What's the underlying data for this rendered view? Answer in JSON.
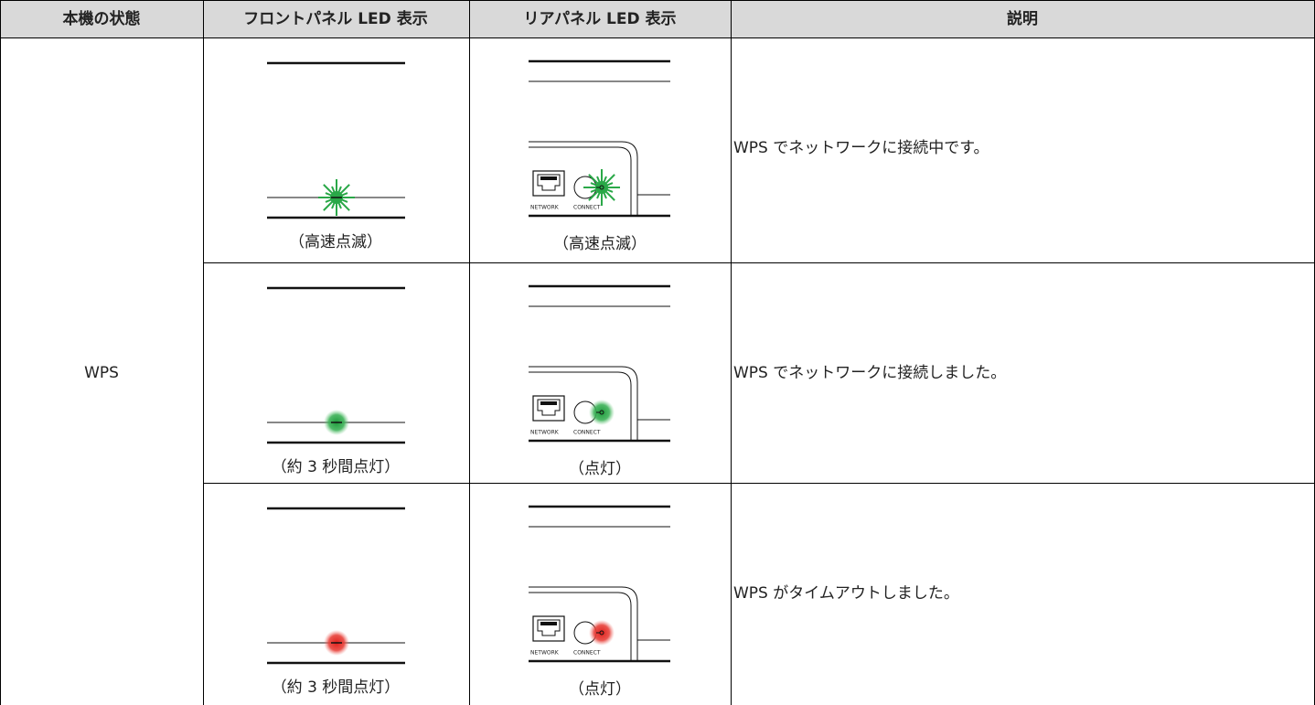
{
  "table": {
    "header": [
      "本機の状態",
      "フロントパネル LED 表示",
      "リアパネル LED 表示",
      "説明"
    ],
    "state": "WPS",
    "rows": [
      {
        "front_caption": "（高速点滅）",
        "rear_caption": "（高速点滅）",
        "description": "WPS でネットワークに接続中です。"
      },
      {
        "front_caption": "（約 3 秒間点灯）",
        "rear_caption": "（点灯）",
        "description": "WPS でネットワークに接続しました。"
      },
      {
        "front_caption": "（約 3 秒間点灯）",
        "rear_caption": "（点灯）",
        "description": "WPS がタイムアウトしました。"
      }
    ]
  },
  "rear_panel": {
    "port_labels": [
      "NETWORK",
      "CONNECT"
    ]
  }
}
